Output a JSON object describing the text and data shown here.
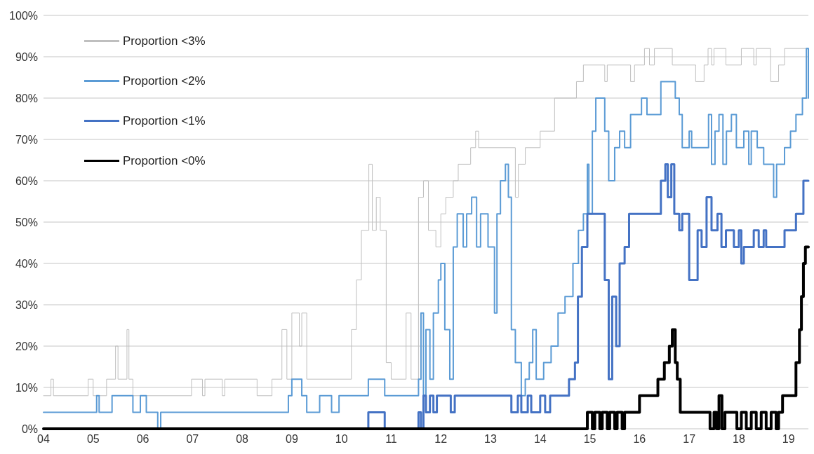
{
  "chart_data": {
    "type": "step",
    "xlim": [
      2004,
      2019.4
    ],
    "xticks": [
      {
        "value": 2004,
        "label": "04"
      },
      {
        "value": 2005,
        "label": "05"
      },
      {
        "value": 2006,
        "label": "06"
      },
      {
        "value": 2007,
        "label": "07"
      },
      {
        "value": 2008,
        "label": "08"
      },
      {
        "value": 2009,
        "label": "09"
      },
      {
        "value": 2010,
        "label": "10"
      },
      {
        "value": 2011,
        "label": "11"
      },
      {
        "value": 2012,
        "label": "12"
      },
      {
        "value": 2013,
        "label": "13"
      },
      {
        "value": 2014,
        "label": "14"
      },
      {
        "value": 2015,
        "label": "15"
      },
      {
        "value": 2016,
        "label": "16"
      },
      {
        "value": 2017,
        "label": "17"
      },
      {
        "value": 2018,
        "label": "18"
      },
      {
        "value": 2019,
        "label": "19"
      }
    ],
    "ylim": [
      0,
      100
    ],
    "yticks": [
      {
        "value": 0,
        "label": "0%"
      },
      {
        "value": 10,
        "label": "10%"
      },
      {
        "value": 20,
        "label": "20%"
      },
      {
        "value": 30,
        "label": "30%"
      },
      {
        "value": 40,
        "label": "40%"
      },
      {
        "value": 50,
        "label": "50%"
      },
      {
        "value": 60,
        "label": "60%"
      },
      {
        "value": 70,
        "label": "70%"
      },
      {
        "value": 80,
        "label": "80%"
      },
      {
        "value": 90,
        "label": "90%"
      },
      {
        "value": 100,
        "label": "100%"
      }
    ],
    "grid": "y",
    "legend": "top left",
    "marker": "none",
    "line_style": "solid",
    "series": [
      {
        "name": "Proportion <3%",
        "color": "#bfbfbf",
        "x": [
          2004,
          2004.15,
          2004.2,
          2004.9,
          2005.0,
          2005.27,
          2005.45,
          2005.5,
          2005.68,
          2005.72,
          2005.8,
          2006.98,
          2007.2,
          2007.25,
          2007.6,
          2007.65,
          2008.3,
          2008.6,
          2008.8,
          2008.9,
          2009.0,
          2009.15,
          2009.2,
          2009.3,
          2010.2,
          2010.3,
          2010.4,
          2010.55,
          2010.62,
          2010.7,
          2010.78,
          2010.9,
          2011.0,
          2011.3,
          2011.4,
          2011.55,
          2011.65,
          2011.75,
          2011.9,
          2012.0,
          2012.1,
          2012.25,
          2012.35,
          2012.6,
          2012.7,
          2012.76,
          2013.5,
          2013.56,
          2013.7,
          2014.0,
          2014.29,
          2014.73,
          2014.87,
          2015.3,
          2015.35,
          2015.82,
          2015.9,
          2016.1,
          2016.2,
          2016.3,
          2016.66,
          2017.13,
          2017.3,
          2017.38,
          2017.45,
          2017.5,
          2017.74,
          2018.05,
          2018.3,
          2018.35,
          2018.64,
          2018.8,
          2018.92,
          2019.4
        ],
        "values": [
          8,
          12,
          8,
          12,
          8,
          12,
          20,
          12,
          24,
          12,
          8,
          12,
          8,
          12,
          8,
          12,
          8,
          12,
          24,
          12,
          28,
          20,
          28,
          12,
          24,
          36,
          48,
          64,
          48,
          56,
          48,
          16,
          12,
          28,
          12,
          56,
          60,
          48,
          44,
          52,
          56,
          60,
          64,
          68,
          72,
          68,
          56,
          64,
          68,
          72,
          80,
          84,
          88,
          84,
          88,
          84,
          88,
          92,
          88,
          92,
          88,
          84,
          88,
          92,
          88,
          92,
          88,
          92,
          88,
          92,
          84,
          88,
          92,
          92
        ]
      },
      {
        "name": "Proportion <2%",
        "color": "#5b9bd5",
        "x": [
          2004,
          2005.07,
          2005.12,
          2005.38,
          2005.8,
          2005.95,
          2006.07,
          2006.3,
          2006.36,
          2008.93,
          2009.0,
          2009.2,
          2009.3,
          2009.56,
          2009.8,
          2009.95,
          2010.54,
          2010.87,
          2011.55,
          2011.6,
          2011.65,
          2011.7,
          2011.78,
          2011.85,
          2011.95,
          2012.0,
          2012.08,
          2012.18,
          2012.25,
          2012.33,
          2012.45,
          2012.52,
          2012.62,
          2012.72,
          2012.8,
          2012.95,
          2013.08,
          2013.13,
          2013.2,
          2013.3,
          2013.36,
          2013.42,
          2013.5,
          2013.62,
          2013.7,
          2013.78,
          2013.85,
          2013.92,
          2014.07,
          2014.22,
          2014.36,
          2014.5,
          2014.66,
          2014.77,
          2014.87,
          2014.95,
          2014.98,
          2015.05,
          2015.12,
          2015.3,
          2015.38,
          2015.5,
          2015.6,
          2015.7,
          2015.82,
          2016.04,
          2016.15,
          2016.43,
          2016.72,
          2016.8,
          2016.86,
          2017.0,
          2017.05,
          2017.39,
          2017.45,
          2017.52,
          2017.6,
          2017.68,
          2017.75,
          2017.85,
          2017.95,
          2018.1,
          2018.2,
          2018.25,
          2018.37,
          2018.5,
          2018.7,
          2018.76,
          2018.92,
          2019.04,
          2019.15,
          2019.28,
          2019.36,
          2019.4
        ],
        "values": [
          4,
          8,
          4,
          8,
          4,
          8,
          4,
          0,
          4,
          8,
          12,
          8,
          4,
          8,
          4,
          8,
          12,
          8,
          12,
          28,
          8,
          24,
          12,
          28,
          36,
          40,
          24,
          12,
          44,
          52,
          44,
          52,
          56,
          44,
          52,
          44,
          28,
          52,
          60,
          64,
          56,
          24,
          16,
          8,
          12,
          16,
          24,
          12,
          16,
          20,
          28,
          32,
          40,
          48,
          52,
          64,
          52,
          72,
          80,
          72,
          60,
          68,
          72,
          68,
          76,
          80,
          76,
          84,
          80,
          76,
          68,
          72,
          68,
          76,
          64,
          72,
          76,
          64,
          72,
          76,
          68,
          72,
          64,
          72,
          68,
          64,
          56,
          64,
          68,
          72,
          76,
          80,
          92,
          80
        ]
      },
      {
        "name": "Proportion <1%",
        "color": "#4472c4",
        "x": [
          2004,
          2010.54,
          2010.87,
          2011.55,
          2011.6,
          2011.65,
          2011.7,
          2011.78,
          2011.85,
          2011.92,
          2012.2,
          2012.28,
          2013.42,
          2013.55,
          2013.62,
          2013.75,
          2013.82,
          2014.0,
          2014.1,
          2014.2,
          2014.58,
          2014.7,
          2014.76,
          2014.84,
          2014.95,
          2015.3,
          2015.38,
          2015.45,
          2015.53,
          2015.6,
          2015.7,
          2015.79,
          2016.43,
          2016.52,
          2016.57,
          2016.64,
          2016.7,
          2016.8,
          2016.86,
          2017.0,
          2017.17,
          2017.25,
          2017.35,
          2017.45,
          2017.57,
          2017.65,
          2017.74,
          2017.9,
          2018.0,
          2018.05,
          2018.1,
          2018.3,
          2018.4,
          2018.5,
          2018.55,
          2018.92,
          2019.15,
          2019.3,
          2019.4
        ],
        "values": [
          0,
          4,
          0,
          4,
          0,
          8,
          4,
          8,
          4,
          8,
          4,
          8,
          4,
          8,
          4,
          8,
          4,
          8,
          4,
          8,
          12,
          16,
          32,
          44,
          52,
          36,
          12,
          32,
          20,
          40,
          44,
          52,
          60,
          64,
          56,
          64,
          52,
          48,
          52,
          36,
          48,
          44,
          56,
          48,
          52,
          44,
          48,
          44,
          48,
          40,
          44,
          48,
          44,
          48,
          44,
          48,
          52,
          60,
          60
        ]
      },
      {
        "name": "Proportion <0%",
        "color": "#000000",
        "x": [
          2004,
          2014.95,
          2015.05,
          2015.1,
          2015.2,
          2015.25,
          2015.35,
          2015.4,
          2015.5,
          2015.55,
          2015.65,
          2015.7,
          2016.0,
          2016.37,
          2016.5,
          2016.6,
          2016.66,
          2016.72,
          2016.76,
          2016.82,
          2017.42,
          2017.5,
          2017.55,
          2017.6,
          2017.66,
          2017.72,
          2017.96,
          2018.05,
          2018.15,
          2018.25,
          2018.35,
          2018.45,
          2018.55,
          2018.65,
          2018.75,
          2018.8,
          2018.88,
          2019.15,
          2019.22,
          2019.26,
          2019.3,
          2019.34,
          2019.4
        ],
        "values": [
          0,
          4,
          0,
          4,
          0,
          4,
          0,
          4,
          0,
          4,
          0,
          4,
          8,
          12,
          16,
          20,
          24,
          16,
          12,
          4,
          0,
          4,
          0,
          8,
          0,
          4,
          0,
          4,
          0,
          4,
          0,
          4,
          0,
          4,
          0,
          4,
          8,
          16,
          24,
          32,
          40,
          44,
          44
        ]
      }
    ]
  }
}
